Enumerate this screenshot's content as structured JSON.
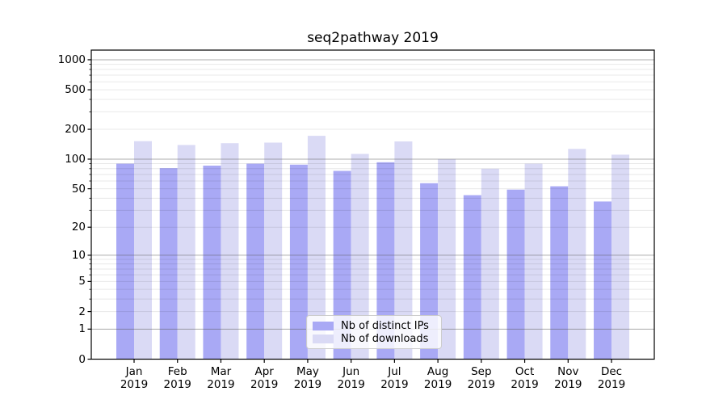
{
  "chart_data": {
    "type": "bar",
    "title": "seq2pathway 2019",
    "xlabel": "",
    "ylabel": "",
    "scale": "log1p",
    "grid": true,
    "legend_position": "lower center",
    "ylim": [
      0,
      1000
    ],
    "yticks": [
      0,
      1,
      2,
      5,
      10,
      20,
      50,
      100,
      200,
      500,
      1000
    ],
    "major_grid_values": [
      1,
      10,
      100,
      1000
    ],
    "categories": [
      "Jan 2019",
      "Feb 2019",
      "Mar 2019",
      "Apr 2019",
      "May 2019",
      "Jun 2019",
      "Jul 2019",
      "Aug 2019",
      "Sep 2019",
      "Oct 2019",
      "Nov 2019",
      "Dec 2019"
    ],
    "series": [
      {
        "key": "distinct-ips",
        "name": "Nb of distinct IPs",
        "color": "#a9a9f5",
        "values": [
          90,
          81,
          86,
          90,
          88,
          76,
          93,
          57,
          43,
          49,
          53,
          37
        ]
      },
      {
        "key": "downloads",
        "name": "Nb of downloads",
        "color": "#dadaf5",
        "values": [
          152,
          139,
          145,
          147,
          172,
          113,
          151,
          100,
          80,
          90,
          127,
          111
        ]
      }
    ],
    "colors": {
      "major_gridline": "#b0b0b0",
      "minor_gridline": "#e8e8e8",
      "axis_spine": "#000000"
    }
  }
}
